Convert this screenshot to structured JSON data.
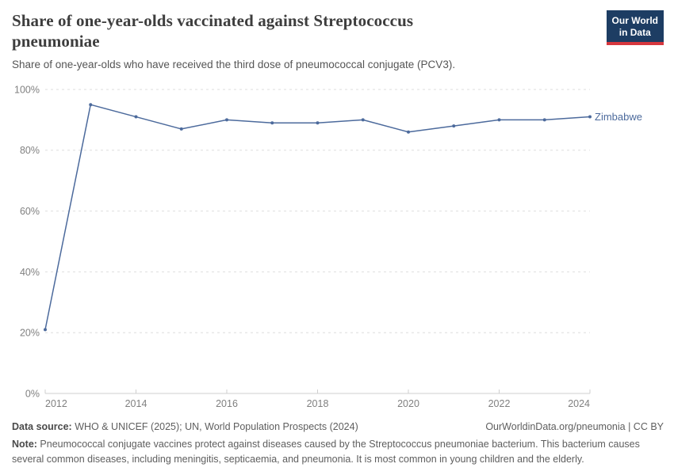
{
  "header": {
    "title": "Share of one-year-olds vaccinated against Streptococcus pneumoniae",
    "subtitle": "Share of one-year-olds who have received the third dose of pneumococcal conjugate (PCV3).",
    "logo": {
      "line1": "Our World",
      "line2": "in Data"
    }
  },
  "chart_data": {
    "type": "line",
    "title": "Share of one-year-olds vaccinated against Streptococcus pneumoniae",
    "x": [
      2012,
      2013,
      2014,
      2015,
      2016,
      2017,
      2018,
      2019,
      2020,
      2021,
      2022,
      2023,
      2024
    ],
    "series": [
      {
        "name": "Zimbabwe",
        "values": [
          21,
          95,
          91,
          87,
          90,
          89,
          89,
          90,
          86,
          88,
          90,
          90,
          91
        ],
        "color": "#4c6a9c"
      }
    ],
    "xlabel": "",
    "ylabel": "",
    "ylim": [
      0,
      100
    ],
    "yticks": [
      0,
      20,
      40,
      60,
      80,
      100
    ],
    "ytick_suffix": "%",
    "xticks": [
      2012,
      2014,
      2016,
      2018,
      2020,
      2022,
      2024
    ],
    "grid": "horizontal-dashed",
    "legend": "end-of-line-label"
  },
  "footer": {
    "source_label": "Data source:",
    "source_text": " WHO & UNICEF (2025); UN, World Population Prospects (2024)",
    "attribution_url": "OurWorldinData.org/pneumonia",
    "attribution_sep": " | ",
    "attribution_license": "CC BY",
    "note_label": "Note:",
    "note_text": " Pneumococcal conjugate vaccines protect against diseases caused by the Streptococcus pneumoniae bacterium. This bacterium causes several common diseases, including meningitis, septicaemia, and pneumonia. It is most common in young children and the elderly."
  },
  "colors": {
    "line": "#4c6a9c",
    "grid": "#dedede",
    "axis": "#cfcfcf",
    "tick_label": "#808080",
    "logo_bg": "#1d3d63",
    "logo_accent": "#d6373e"
  }
}
